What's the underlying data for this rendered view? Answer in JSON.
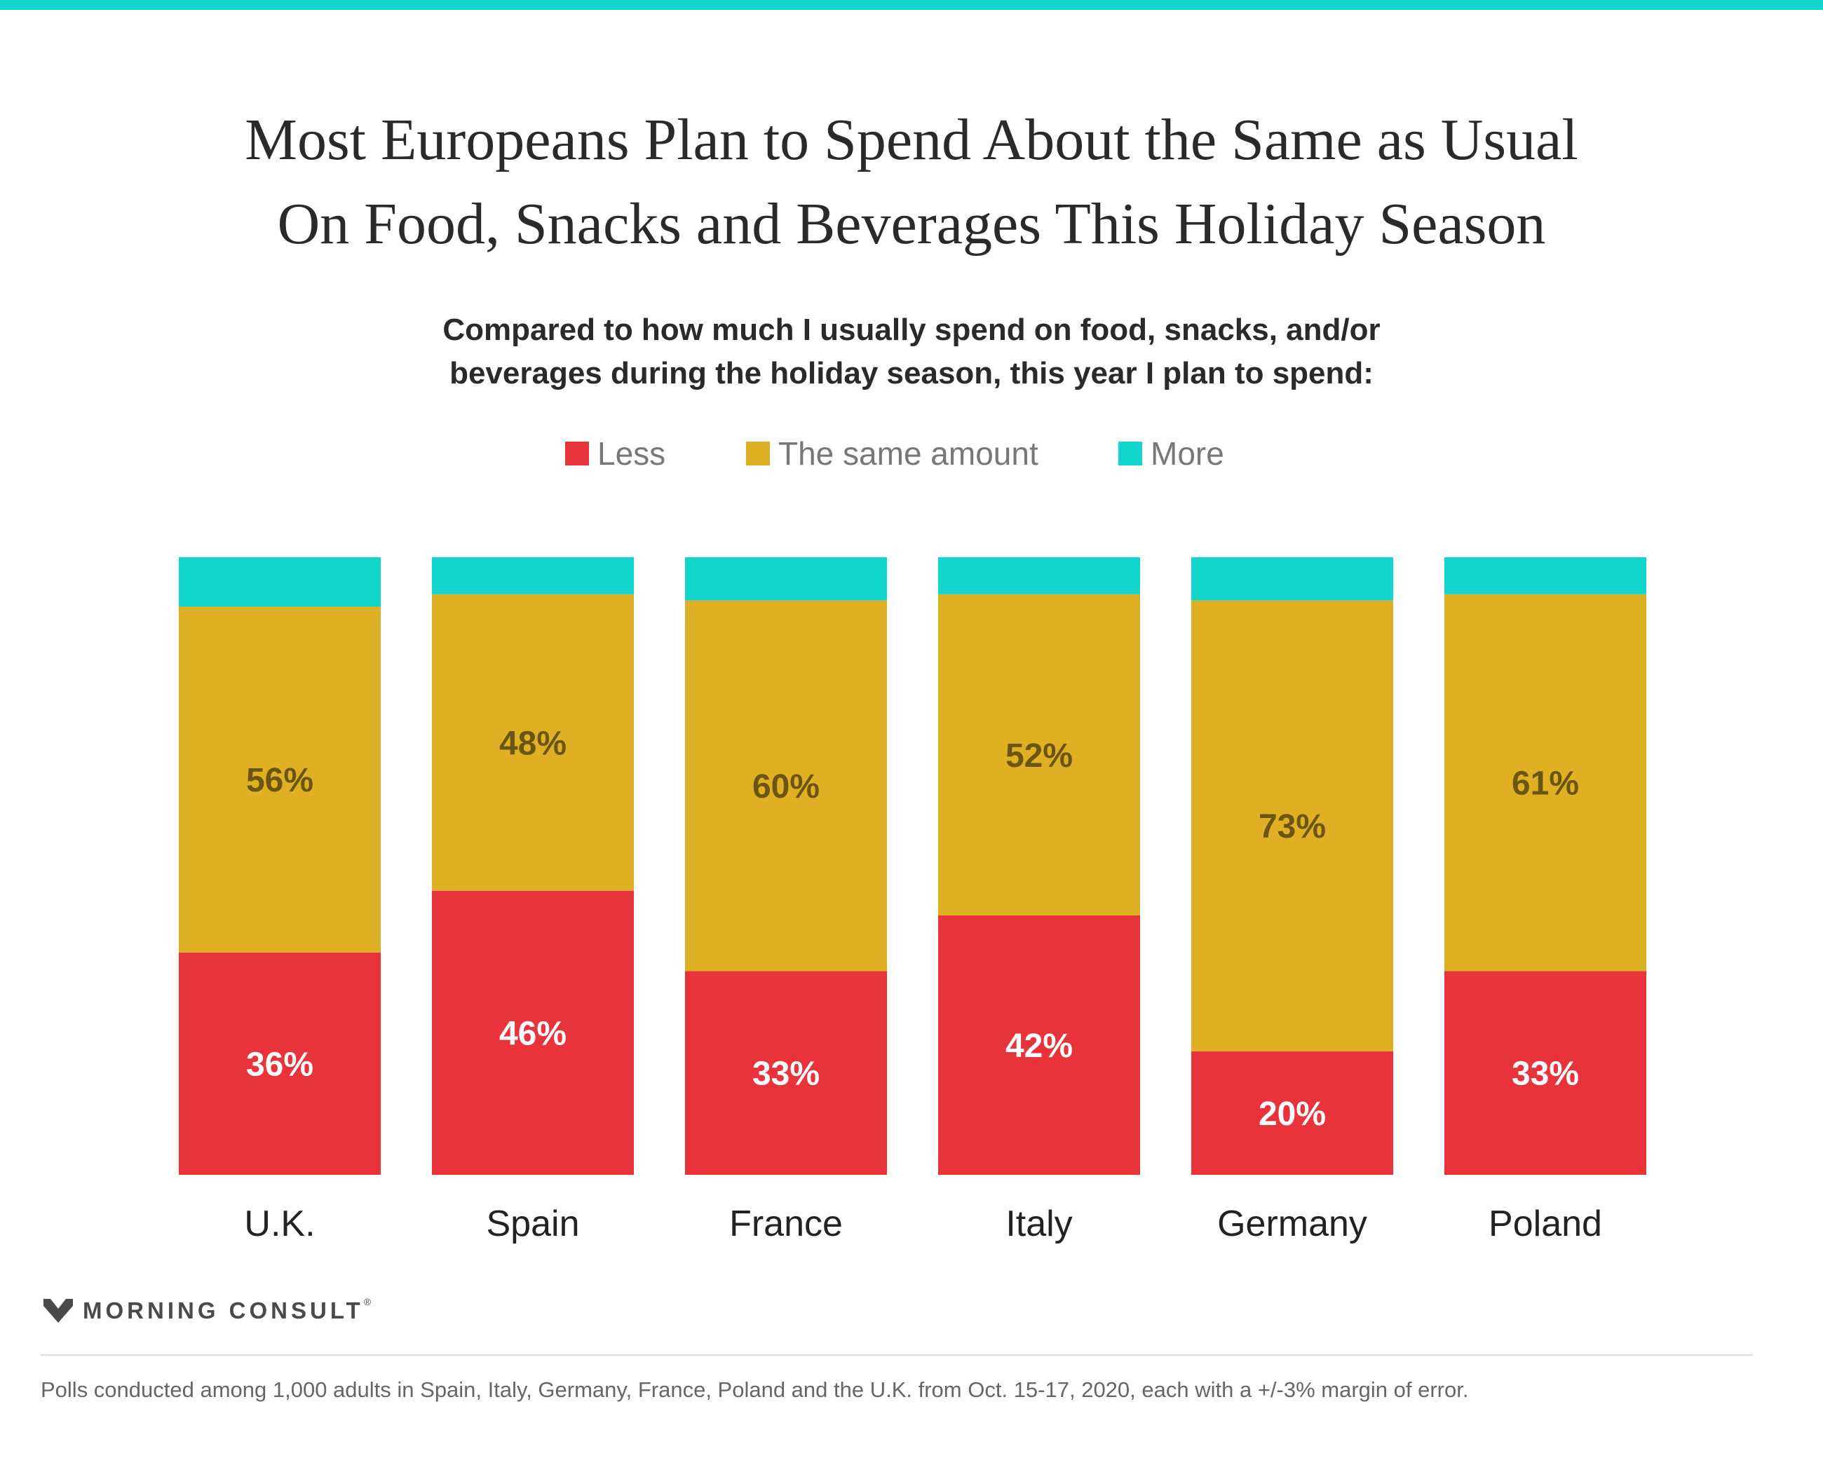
{
  "colors": {
    "accent": "#12d6cc",
    "less": "#e8333a",
    "same": "#e0b024",
    "more": "#12d6cc",
    "same_label": "#6b5510",
    "less_label": "#ffffff",
    "category_label": "#222222"
  },
  "title_lines": [
    "Most Europeans Plan to Spend About the Same as Usual",
    "On Food, Snacks and Beverages This Holiday Season"
  ],
  "subtitle_lines": [
    "Compared to how much I usually spend on food, snacks, and/or",
    "beverages during the holiday season, this year I plan to spend:"
  ],
  "legend": [
    {
      "label": "Less",
      "color": "#e8333a"
    },
    {
      "label": "The same amount",
      "color": "#e0b024"
    },
    {
      "label": "More",
      "color": "#12d6cc"
    }
  ],
  "chart_data": {
    "type": "bar",
    "stacked": true,
    "orientation": "vertical",
    "categories": [
      "U.K.",
      "Spain",
      "France",
      "Italy",
      "Germany",
      "Poland"
    ],
    "series": [
      {
        "name": "Less",
        "values": [
          36,
          46,
          33,
          42,
          20,
          33
        ],
        "color": "#e8333a"
      },
      {
        "name": "The same amount",
        "values": [
          56,
          48,
          60,
          52,
          73,
          61
        ],
        "color": "#e0b024"
      },
      {
        "name": "More",
        "values": [
          8,
          6,
          7,
          6,
          7,
          6
        ],
        "color": "#12d6cc"
      }
    ],
    "data_labels_shown_for": [
      "Less",
      "The same amount"
    ],
    "ylim": [
      0,
      100
    ],
    "grid": false,
    "legend_position": "top-center"
  },
  "logo": {
    "text": "MORNING CONSULT",
    "mark": "®"
  },
  "footnote": "Polls conducted among 1,000 adults in Spain, Italy, Germany, France, Poland and the U.K. from Oct. 15-17, 2020, each with a +/-3% margin of error."
}
